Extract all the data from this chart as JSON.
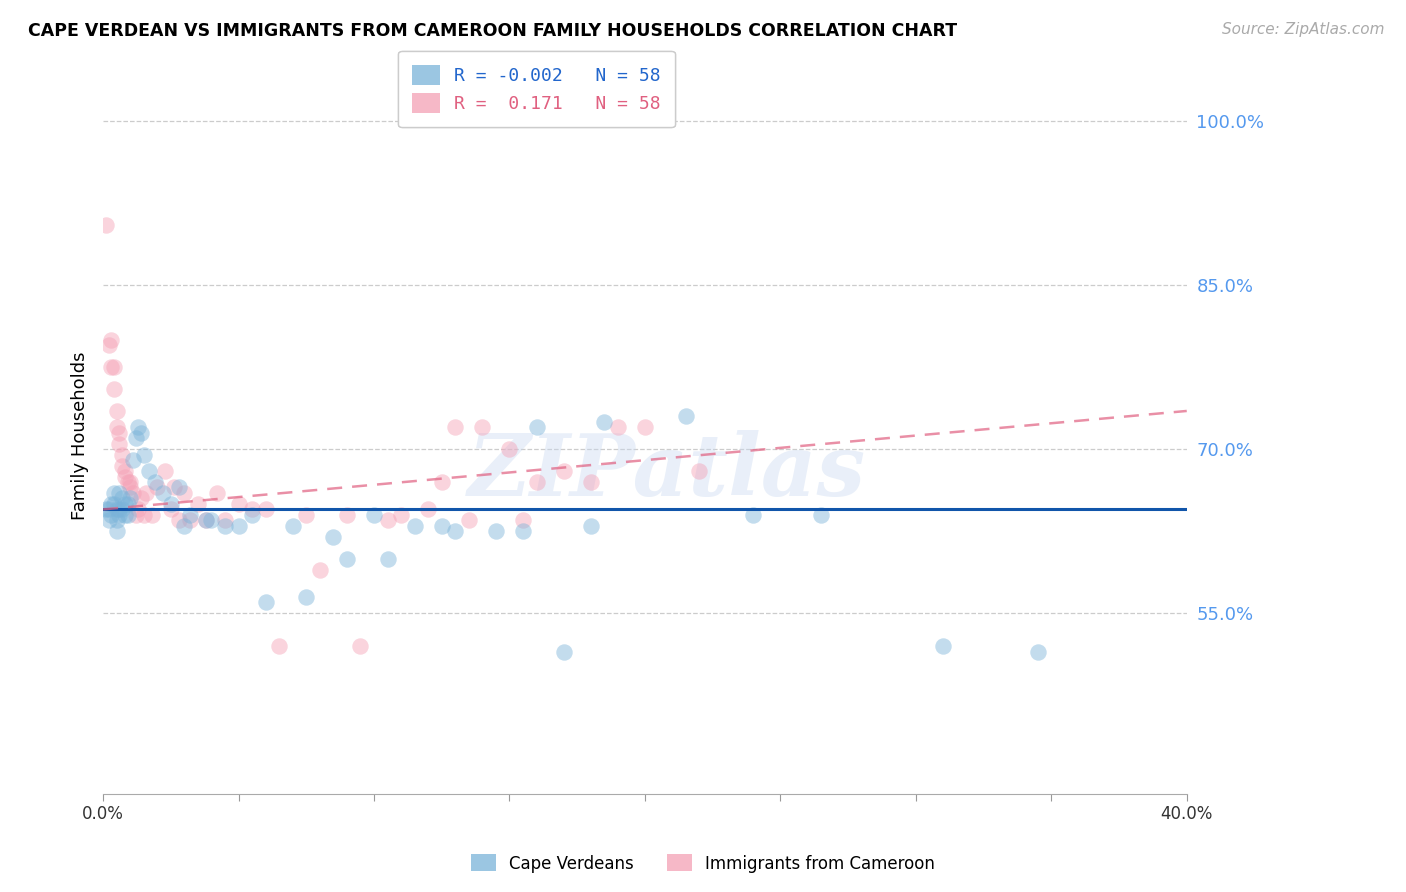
{
  "title": "CAPE VERDEAN VS IMMIGRANTS FROM CAMEROON FAMILY HOUSEHOLDS CORRELATION CHART",
  "source": "Source: ZipAtlas.com",
  "ylabel": "Family Households",
  "xlim": [
    0.0,
    0.4
  ],
  "ylim": [
    0.385,
    1.04
  ],
  "yticks": [
    0.55,
    0.7,
    0.85,
    1.0
  ],
  "ytick_labels": [
    "55.0%",
    "70.0%",
    "85.0%",
    "100.0%"
  ],
  "xticks": [
    0.0,
    0.05,
    0.1,
    0.15,
    0.2,
    0.25,
    0.3,
    0.35,
    0.4
  ],
  "xtick_labels": [
    "0.0%",
    "",
    "",
    "",
    "",
    "",
    "",
    "",
    "40.0%"
  ],
  "blue_color": "#7ab3d9",
  "pink_color": "#f4a0b5",
  "blue_line_color": "#1155aa",
  "pink_line_color": "#e06080",
  "R_blue": -0.002,
  "R_pink": 0.171,
  "N": 58,
  "legend_labels": [
    "Cape Verdeans",
    "Immigrants from Cameroon"
  ],
  "blue_line_y0": 0.645,
  "blue_line_y1": 0.645,
  "pink_line_y0": 0.645,
  "pink_line_y1": 0.735,
  "blue_scatter_x": [
    0.001,
    0.002,
    0.002,
    0.003,
    0.003,
    0.004,
    0.004,
    0.005,
    0.005,
    0.005,
    0.006,
    0.006,
    0.006,
    0.007,
    0.007,
    0.008,
    0.008,
    0.009,
    0.009,
    0.01,
    0.011,
    0.012,
    0.013,
    0.014,
    0.015,
    0.017,
    0.019,
    0.022,
    0.025,
    0.028,
    0.032,
    0.038,
    0.045,
    0.055,
    0.07,
    0.085,
    0.1,
    0.115,
    0.16,
    0.185,
    0.215,
    0.24,
    0.265,
    0.13,
    0.155,
    0.18,
    0.31,
    0.345,
    0.03,
    0.04,
    0.05,
    0.06,
    0.075,
    0.09,
    0.105,
    0.125,
    0.145,
    0.17
  ],
  "blue_scatter_y": [
    0.645,
    0.645,
    0.635,
    0.65,
    0.64,
    0.66,
    0.65,
    0.645,
    0.635,
    0.625,
    0.645,
    0.66,
    0.64,
    0.645,
    0.655,
    0.64,
    0.65,
    0.65,
    0.64,
    0.655,
    0.69,
    0.71,
    0.72,
    0.715,
    0.695,
    0.68,
    0.67,
    0.66,
    0.65,
    0.665,
    0.64,
    0.635,
    0.63,
    0.64,
    0.63,
    0.62,
    0.64,
    0.63,
    0.72,
    0.725,
    0.73,
    0.64,
    0.64,
    0.625,
    0.625,
    0.63,
    0.52,
    0.515,
    0.63,
    0.635,
    0.63,
    0.56,
    0.565,
    0.6,
    0.6,
    0.63,
    0.625,
    0.515
  ],
  "pink_scatter_x": [
    0.001,
    0.002,
    0.003,
    0.003,
    0.004,
    0.004,
    0.005,
    0.005,
    0.006,
    0.006,
    0.007,
    0.007,
    0.008,
    0.008,
    0.009,
    0.01,
    0.01,
    0.011,
    0.012,
    0.013,
    0.014,
    0.015,
    0.016,
    0.018,
    0.02,
    0.023,
    0.026,
    0.03,
    0.035,
    0.042,
    0.05,
    0.06,
    0.075,
    0.09,
    0.11,
    0.13,
    0.15,
    0.17,
    0.2,
    0.22,
    0.125,
    0.14,
    0.16,
    0.18,
    0.19,
    0.025,
    0.028,
    0.032,
    0.038,
    0.045,
    0.055,
    0.065,
    0.08,
    0.095,
    0.105,
    0.12,
    0.135,
    0.155
  ],
  "pink_scatter_y": [
    0.905,
    0.795,
    0.8,
    0.775,
    0.775,
    0.755,
    0.735,
    0.72,
    0.715,
    0.705,
    0.695,
    0.685,
    0.675,
    0.68,
    0.67,
    0.67,
    0.665,
    0.66,
    0.64,
    0.645,
    0.655,
    0.64,
    0.66,
    0.64,
    0.665,
    0.68,
    0.665,
    0.66,
    0.65,
    0.66,
    0.65,
    0.645,
    0.64,
    0.64,
    0.64,
    0.72,
    0.7,
    0.68,
    0.72,
    0.68,
    0.67,
    0.72,
    0.67,
    0.67,
    0.72,
    0.645,
    0.635,
    0.635,
    0.635,
    0.635,
    0.645,
    0.52,
    0.59,
    0.52,
    0.635,
    0.645,
    0.635,
    0.635
  ],
  "watermark": "ZIPatlas",
  "dot_size": 140,
  "dot_alpha": 0.45
}
